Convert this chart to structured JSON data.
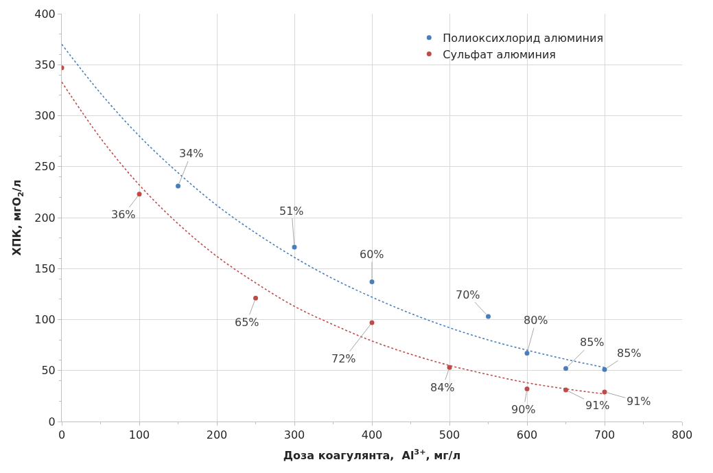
{
  "chart_data": {
    "type": "scatter",
    "xlabel": "Доза коагулянта,  Al$^{3+}$, мг/л",
    "ylabel": "ХПК, мгО$_{2}$/л",
    "xlim": [
      0,
      800
    ],
    "xticks": [
      0,
      100,
      200,
      300,
      400,
      500,
      600,
      700,
      800
    ],
    "ylim": [
      0,
      400
    ],
    "yticks": [
      0,
      50,
      100,
      150,
      200,
      250,
      300,
      350,
      400
    ],
    "grid": true,
    "legend": "top right",
    "marker": "circle",
    "series": [
      {
        "name": "Полиоксихлорид алюминия",
        "color": "#4a7ebb",
        "x": [
          150,
          300,
          400,
          550,
          600,
          650,
          700
        ],
        "values": [
          231,
          171,
          137,
          103,
          67,
          52,
          51
        ]
      },
      {
        "name": "Сульфат алюминия",
        "color": "#be4b48",
        "x": [
          0,
          100,
          250,
          400,
          500,
          600,
          650,
          700
        ],
        "values": [
          347,
          223,
          121,
          97,
          53,
          32,
          31,
          29
        ]
      },
      {
        "type": "line",
        "line_style": "dotted",
        "marker": "none",
        "color": "#4a7ebb",
        "x": [
          0,
          50,
          100,
          150,
          200,
          250,
          300,
          350,
          400,
          450,
          500,
          550,
          600,
          650,
          700
        ],
        "values": [
          370,
          322,
          280,
          244,
          212,
          185,
          161,
          140,
          122,
          106,
          92,
          80,
          70,
          61,
          53
        ]
      },
      {
        "type": "line",
        "line_style": "dotted",
        "marker": "none",
        "color": "#be4b48",
        "x": [
          0,
          50,
          100,
          150,
          200,
          250,
          300,
          350,
          400,
          450,
          500,
          550,
          600,
          650,
          700
        ],
        "values": [
          333,
          278,
          232,
          194,
          162,
          136,
          113,
          95,
          79,
          66,
          55,
          46,
          38,
          32,
          27
        ]
      }
    ],
    "annotations": [
      {
        "text": "34%",
        "x": 150,
        "y": 231
      },
      {
        "text": "51%",
        "x": 300,
        "y": 171
      },
      {
        "text": "60%",
        "x": 400,
        "y": 137
      },
      {
        "text": "70%",
        "x": 550,
        "y": 103
      },
      {
        "text": "80%",
        "x": 600,
        "y": 67
      },
      {
        "text": "85%",
        "x": 650,
        "y": 52
      },
      {
        "text": "85%",
        "x": 700,
        "y": 51
      },
      {
        "text": "36%",
        "x": 100,
        "y": 223
      },
      {
        "text": "65%",
        "x": 250,
        "y": 121
      },
      {
        "text": "72%",
        "x": 400,
        "y": 97
      },
      {
        "text": "84%",
        "x": 500,
        "y": 53
      },
      {
        "text": "90%",
        "x": 600,
        "y": 32
      },
      {
        "text": "91%",
        "x": 650,
        "y": 31
      },
      {
        "text": "91%",
        "x": 700,
        "y": 29
      }
    ]
  }
}
